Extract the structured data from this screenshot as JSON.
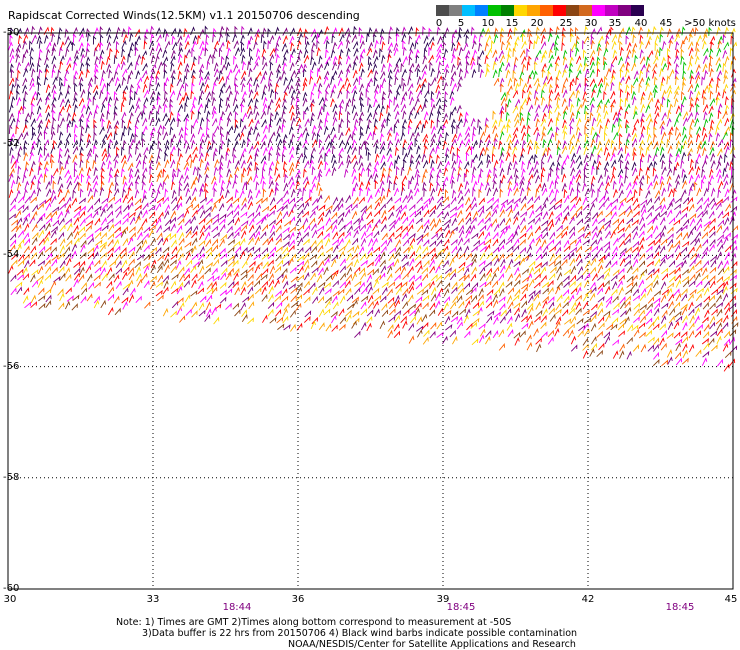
{
  "title": "Rapidscat Corrected Winds(12.5KM) v1.1 20150706 descending",
  "legend": {
    "colors": [
      "#4d4d4d",
      "#808080",
      "#00bfff",
      "#0080ff",
      "#00c000",
      "#008000",
      "#ffd700",
      "#ffa500",
      "#ff6000",
      "#ff0000",
      "#8b4513",
      "#d2691e",
      "#ff00ff",
      "#c000c0",
      "#800080",
      "#2a0050"
    ],
    "labels": [
      "0",
      "5",
      "10",
      "15",
      "20",
      "25",
      "30",
      "35",
      "40",
      "45",
      ">50 knots"
    ]
  },
  "map": {
    "lat_labels": [
      "-50",
      "-52",
      "-54",
      "-56",
      "-58",
      "-60"
    ],
    "lon_labels": [
      "30",
      "33",
      "36",
      "39",
      "42",
      "45"
    ],
    "time_labels": [
      "18:44",
      "18:45",
      "18:45"
    ],
    "lon_range": [
      30,
      45
    ],
    "lat_range": [
      -50,
      -60
    ]
  },
  "notes": {
    "line1": "Note: 1) Times are GMT 2)Times along bottom correspond to measurement at -50S",
    "line2": "3)Data buffer is 22 hrs from 20150706 4) Black wind barbs indicate possible contamination",
    "line3": "NOAA/NESDIS/Center for Satellite Applications and Research"
  }
}
